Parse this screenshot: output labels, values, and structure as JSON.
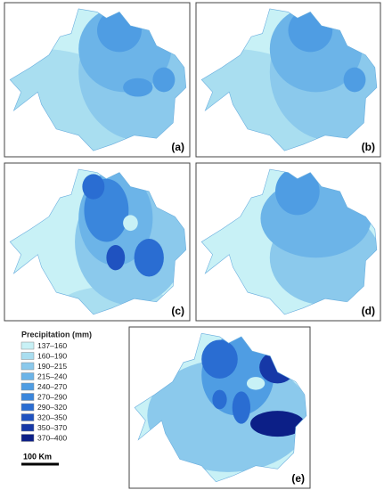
{
  "panels": [
    {
      "label": "(a)"
    },
    {
      "label": "(b)"
    },
    {
      "label": "(c)"
    },
    {
      "label": "(d)"
    },
    {
      "label": "(e)"
    }
  ],
  "legend": {
    "title": "Precipitation (mm)",
    "items": [
      {
        "label": "137–160",
        "color": "#c8f1f6"
      },
      {
        "label": "160–190",
        "color": "#a9def0"
      },
      {
        "label": "190–215",
        "color": "#8bc9ec"
      },
      {
        "label": "215–240",
        "color": "#6cb4e8"
      },
      {
        "label": "240–270",
        "color": "#4f9de3"
      },
      {
        "label": "270–290",
        "color": "#3a86dc"
      },
      {
        "label": "290–320",
        "color": "#2a6dd2"
      },
      {
        "label": "320–350",
        "color": "#1f52c0"
      },
      {
        "label": "350–370",
        "color": "#1638a7"
      },
      {
        "label": "370–400",
        "color": "#0c1f87"
      }
    ]
  },
  "scale_bar": {
    "label": "100 Km"
  }
}
